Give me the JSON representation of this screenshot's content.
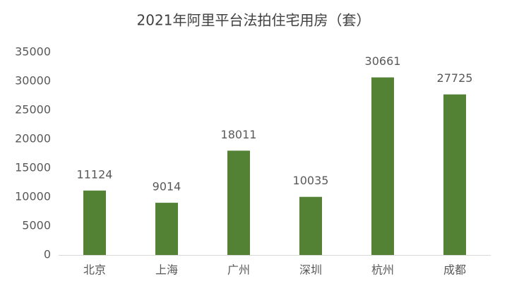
{
  "chart_data": {
    "type": "bar",
    "title": "2021年阿里平台法拍住宅用房（套）",
    "categories": [
      "北京",
      "上海",
      "广州",
      "深圳",
      "杭州",
      "成都"
    ],
    "values": [
      11124,
      9014,
      18011,
      10035,
      30661,
      27725
    ],
    "color": "#548235",
    "ylim": [
      0,
      35000
    ],
    "yticks": [
      0,
      5000,
      10000,
      15000,
      20000,
      25000,
      30000,
      35000
    ],
    "grid": false
  }
}
